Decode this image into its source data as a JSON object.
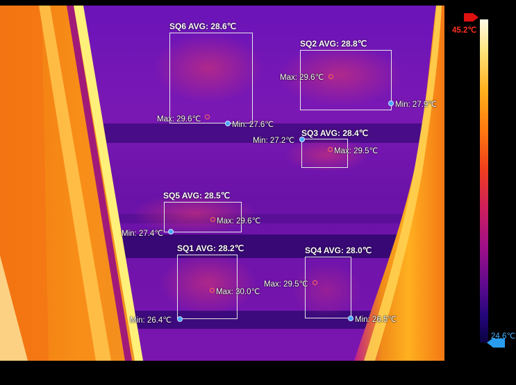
{
  "scale": {
    "max_label": "45.2℃",
    "min_label": "24.6℃",
    "max_arrow_color": "#e01010",
    "min_arrow_color": "#2a9cf0"
  },
  "regions": {
    "sq6": {
      "title": "SQ6 AVG: 28.6℃",
      "max": "Max: 29.6℃",
      "min": "Min: 27.6℃"
    },
    "sq2": {
      "title": "SQ2 AVG: 28.8℃",
      "max": "Max: 29.6℃",
      "min": "Min: 27.9℃"
    },
    "sq3": {
      "title": "SQ3 AVG: 28.4℃",
      "max": "Max: 29.5℃",
      "min": "Min: 27.2℃"
    },
    "sq5": {
      "title": "SQ5 AVG: 28.5℃",
      "max": "Max: 29.6℃",
      "min": "Min: 27.4℃"
    },
    "sq1": {
      "title": "SQ1 AVG: 28.2℃",
      "max": "Max: 30.0℃",
      "min": "Min: 26.4℃"
    },
    "sq4": {
      "title": "SQ4 AVG: 28.0℃",
      "max": "Max: 29.5℃",
      "min": "Min: 26.5℃"
    }
  }
}
